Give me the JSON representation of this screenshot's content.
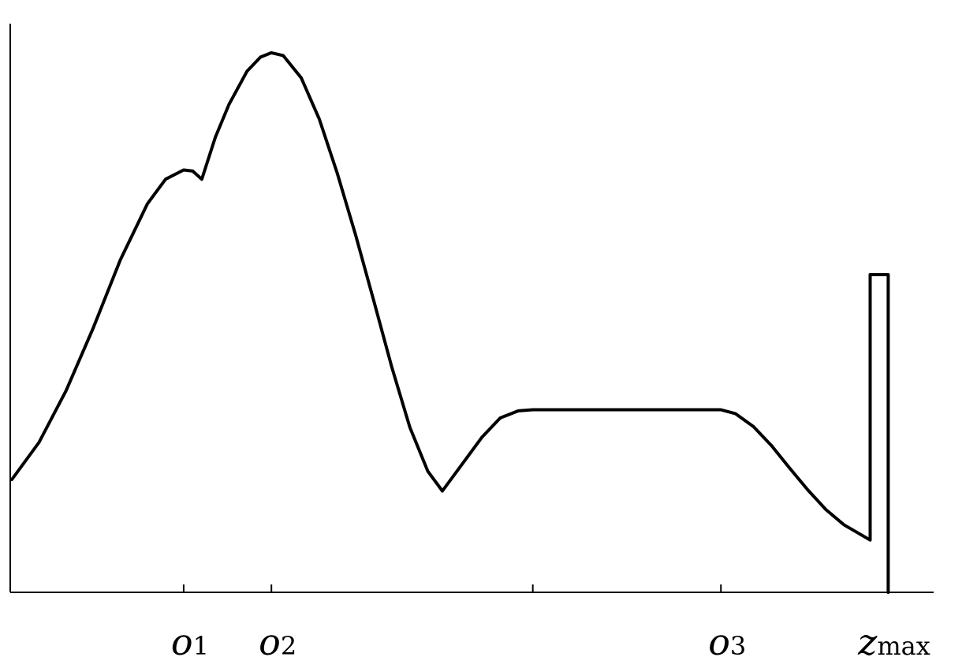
{
  "chart_data": {
    "type": "line",
    "title": "",
    "xlabel": "",
    "ylabel": "",
    "grid": false,
    "legend": "none",
    "xlim": [
      0,
      100
    ],
    "ylim": [
      0,
      100
    ],
    "ticks": [
      {
        "x": 19,
        "base": "o",
        "sub": "1",
        "label": "o1"
      },
      {
        "x": 28.7,
        "base": "o",
        "sub": "2",
        "label": "o2"
      },
      {
        "x": 57.6,
        "base": "",
        "sub": "",
        "label": ""
      },
      {
        "x": 78.4,
        "base": "o",
        "sub": "3",
        "label": "o3"
      },
      {
        "x": 96.9,
        "base": "z",
        "sub": "max",
        "label": "z_max"
      }
    ],
    "series": [
      {
        "color": "#000000",
        "points": [
          [
            0,
            20.7
          ],
          [
            3,
            27.5
          ],
          [
            6,
            37.0
          ],
          [
            9,
            48.5
          ],
          [
            12,
            61.0
          ],
          [
            15,
            71.3
          ],
          [
            17,
            75.8
          ],
          [
            19,
            77.5
          ],
          [
            20,
            77.3
          ],
          [
            21,
            75.8
          ],
          [
            22.5,
            83.5
          ],
          [
            24,
            89.5
          ],
          [
            26,
            95.6
          ],
          [
            27.5,
            98.2
          ],
          [
            28.7,
            99.0
          ],
          [
            30,
            98.5
          ],
          [
            32,
            94.4
          ],
          [
            34,
            86.8
          ],
          [
            36,
            76.8
          ],
          [
            38,
            65.6
          ],
          [
            40,
            53.6
          ],
          [
            42,
            41.4
          ],
          [
            44,
            30.3
          ],
          [
            46,
            22.2
          ],
          [
            47.6,
            18.6
          ],
          [
            50,
            24.0
          ],
          [
            52,
            28.5
          ],
          [
            54,
            32.0
          ],
          [
            56,
            33.3
          ],
          [
            57.6,
            33.5
          ],
          [
            70,
            33.5
          ],
          [
            78.4,
            33.5
          ],
          [
            80,
            32.8
          ],
          [
            82,
            30.4
          ],
          [
            84,
            26.9
          ],
          [
            86,
            22.8
          ],
          [
            88,
            18.8
          ],
          [
            90,
            15.2
          ],
          [
            92,
            12.4
          ],
          [
            94.9,
            9.6
          ],
          [
            94.9,
            58.3
          ],
          [
            96.9,
            58.3
          ],
          [
            96.9,
            0
          ]
        ]
      }
    ]
  }
}
